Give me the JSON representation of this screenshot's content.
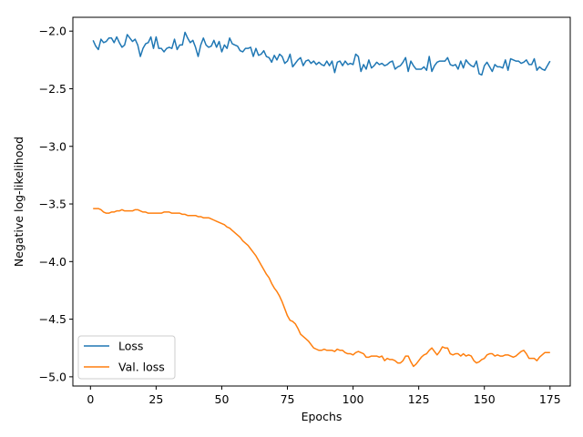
{
  "chart_data": {
    "type": "line",
    "title": "",
    "xlabel": "Epochs",
    "ylabel": "Negative log-likelihood",
    "xlim": [
      -6.7,
      182.7
    ],
    "ylim": [
      -5.08,
      -1.88
    ],
    "xticks": [
      0,
      25,
      50,
      75,
      100,
      125,
      150,
      175
    ],
    "xtick_labels": [
      "0",
      "25",
      "50",
      "75",
      "100",
      "125",
      "150",
      "175"
    ],
    "yticks": [
      -2.0,
      -2.5,
      -3.0,
      -3.5,
      -4.0,
      -4.5,
      -5.0
    ],
    "ytick_labels": [
      "−2.0",
      "−2.5",
      "−3.0",
      "−3.5",
      "−4.0",
      "−4.5",
      "−5.0"
    ],
    "grid": false,
    "legend_position": "lower-left",
    "x": {
      "start": 1,
      "end": 175,
      "step": 1
    },
    "series": [
      {
        "name": "Loss",
        "color": "#1f77b4",
        "values": [
          -2.08,
          -2.13,
          -2.16,
          -2.07,
          -2.1,
          -2.09,
          -2.06,
          -2.06,
          -2.1,
          -2.05,
          -2.1,
          -2.14,
          -2.12,
          -2.03,
          -2.06,
          -2.09,
          -2.07,
          -2.12,
          -2.22,
          -2.15,
          -2.11,
          -2.1,
          -2.05,
          -2.15,
          -2.05,
          -2.15,
          -2.15,
          -2.18,
          -2.15,
          -2.14,
          -2.15,
          -2.07,
          -2.16,
          -2.12,
          -2.12,
          -2.01,
          -2.06,
          -2.1,
          -2.08,
          -2.14,
          -2.22,
          -2.12,
          -2.06,
          -2.12,
          -2.14,
          -2.13,
          -2.08,
          -2.14,
          -2.09,
          -2.18,
          -2.12,
          -2.15,
          -2.06,
          -2.11,
          -2.12,
          -2.13,
          -2.17,
          -2.18,
          -2.15,
          -2.15,
          -2.14,
          -2.22,
          -2.15,
          -2.21,
          -2.2,
          -2.17,
          -2.22,
          -2.23,
          -2.27,
          -2.21,
          -2.25,
          -2.2,
          -2.22,
          -2.28,
          -2.26,
          -2.2,
          -2.31,
          -2.28,
          -2.25,
          -2.23,
          -2.3,
          -2.26,
          -2.25,
          -2.28,
          -2.26,
          -2.29,
          -2.27,
          -2.29,
          -2.3,
          -2.26,
          -2.3,
          -2.26,
          -2.36,
          -2.27,
          -2.26,
          -2.3,
          -2.26,
          -2.29,
          -2.28,
          -2.29,
          -2.2,
          -2.22,
          -2.35,
          -2.29,
          -2.33,
          -2.25,
          -2.32,
          -2.3,
          -2.27,
          -2.29,
          -2.28,
          -2.3,
          -2.29,
          -2.27,
          -2.26,
          -2.33,
          -2.31,
          -2.3,
          -2.27,
          -2.23,
          -2.35,
          -2.26,
          -2.3,
          -2.33,
          -2.33,
          -2.33,
          -2.31,
          -2.34,
          -2.22,
          -2.35,
          -2.3,
          -2.27,
          -2.26,
          -2.26,
          -2.26,
          -2.23,
          -2.29,
          -2.3,
          -2.29,
          -2.33,
          -2.26,
          -2.32,
          -2.25,
          -2.28,
          -2.3,
          -2.31,
          -2.26,
          -2.37,
          -2.38,
          -2.3,
          -2.27,
          -2.31,
          -2.35,
          -2.29,
          -2.31,
          -2.31,
          -2.32,
          -2.25,
          -2.34,
          -2.24,
          -2.25,
          -2.26,
          -2.26,
          -2.28,
          -2.27,
          -2.25,
          -2.29,
          -2.29,
          -2.24,
          -2.34,
          -2.31,
          -2.33,
          -2.34,
          -2.3,
          -2.26
        ]
      },
      {
        "name": "Val. loss",
        "color": "#ff7f0e",
        "values": [
          -3.54,
          -3.54,
          -3.54,
          -3.55,
          -3.57,
          -3.58,
          -3.58,
          -3.57,
          -3.57,
          -3.56,
          -3.56,
          -3.55,
          -3.56,
          -3.56,
          -3.56,
          -3.56,
          -3.55,
          -3.55,
          -3.56,
          -3.57,
          -3.57,
          -3.58,
          -3.58,
          -3.58,
          -3.58,
          -3.58,
          -3.58,
          -3.57,
          -3.57,
          -3.57,
          -3.58,
          -3.58,
          -3.58,
          -3.58,
          -3.59,
          -3.59,
          -3.6,
          -3.6,
          -3.6,
          -3.6,
          -3.61,
          -3.61,
          -3.62,
          -3.62,
          -3.62,
          -3.63,
          -3.64,
          -3.65,
          -3.66,
          -3.67,
          -3.68,
          -3.7,
          -3.71,
          -3.73,
          -3.75,
          -3.77,
          -3.79,
          -3.82,
          -3.84,
          -3.86,
          -3.89,
          -3.92,
          -3.95,
          -3.99,
          -4.03,
          -4.07,
          -4.11,
          -4.14,
          -4.19,
          -4.23,
          -4.26,
          -4.3,
          -4.35,
          -4.41,
          -4.47,
          -4.51,
          -4.52,
          -4.54,
          -4.58,
          -4.63,
          -4.65,
          -4.67,
          -4.69,
          -4.72,
          -4.75,
          -4.76,
          -4.77,
          -4.77,
          -4.76,
          -4.77,
          -4.77,
          -4.77,
          -4.78,
          -4.76,
          -4.77,
          -4.77,
          -4.79,
          -4.8,
          -4.8,
          -4.81,
          -4.79,
          -4.78,
          -4.79,
          -4.8,
          -4.83,
          -4.83,
          -4.82,
          -4.82,
          -4.82,
          -4.83,
          -4.82,
          -4.86,
          -4.84,
          -4.85,
          -4.85,
          -4.86,
          -4.88,
          -4.88,
          -4.86,
          -4.82,
          -4.82,
          -4.87,
          -4.91,
          -4.89,
          -4.86,
          -4.83,
          -4.81,
          -4.8,
          -4.77,
          -4.75,
          -4.78,
          -4.81,
          -4.78,
          -4.74,
          -4.75,
          -4.75,
          -4.8,
          -4.81,
          -4.8,
          -4.8,
          -4.82,
          -4.8,
          -4.82,
          -4.81,
          -4.82,
          -4.86,
          -4.88,
          -4.87,
          -4.85,
          -4.84,
          -4.81,
          -4.8,
          -4.8,
          -4.82,
          -4.81,
          -4.82,
          -4.82,
          -4.81,
          -4.81,
          -4.82,
          -4.83,
          -4.82,
          -4.8,
          -4.78,
          -4.77,
          -4.8,
          -4.84,
          -4.84,
          -4.84,
          -4.86,
          -4.83,
          -4.81,
          -4.79,
          -4.79,
          -4.79
        ]
      }
    ]
  }
}
